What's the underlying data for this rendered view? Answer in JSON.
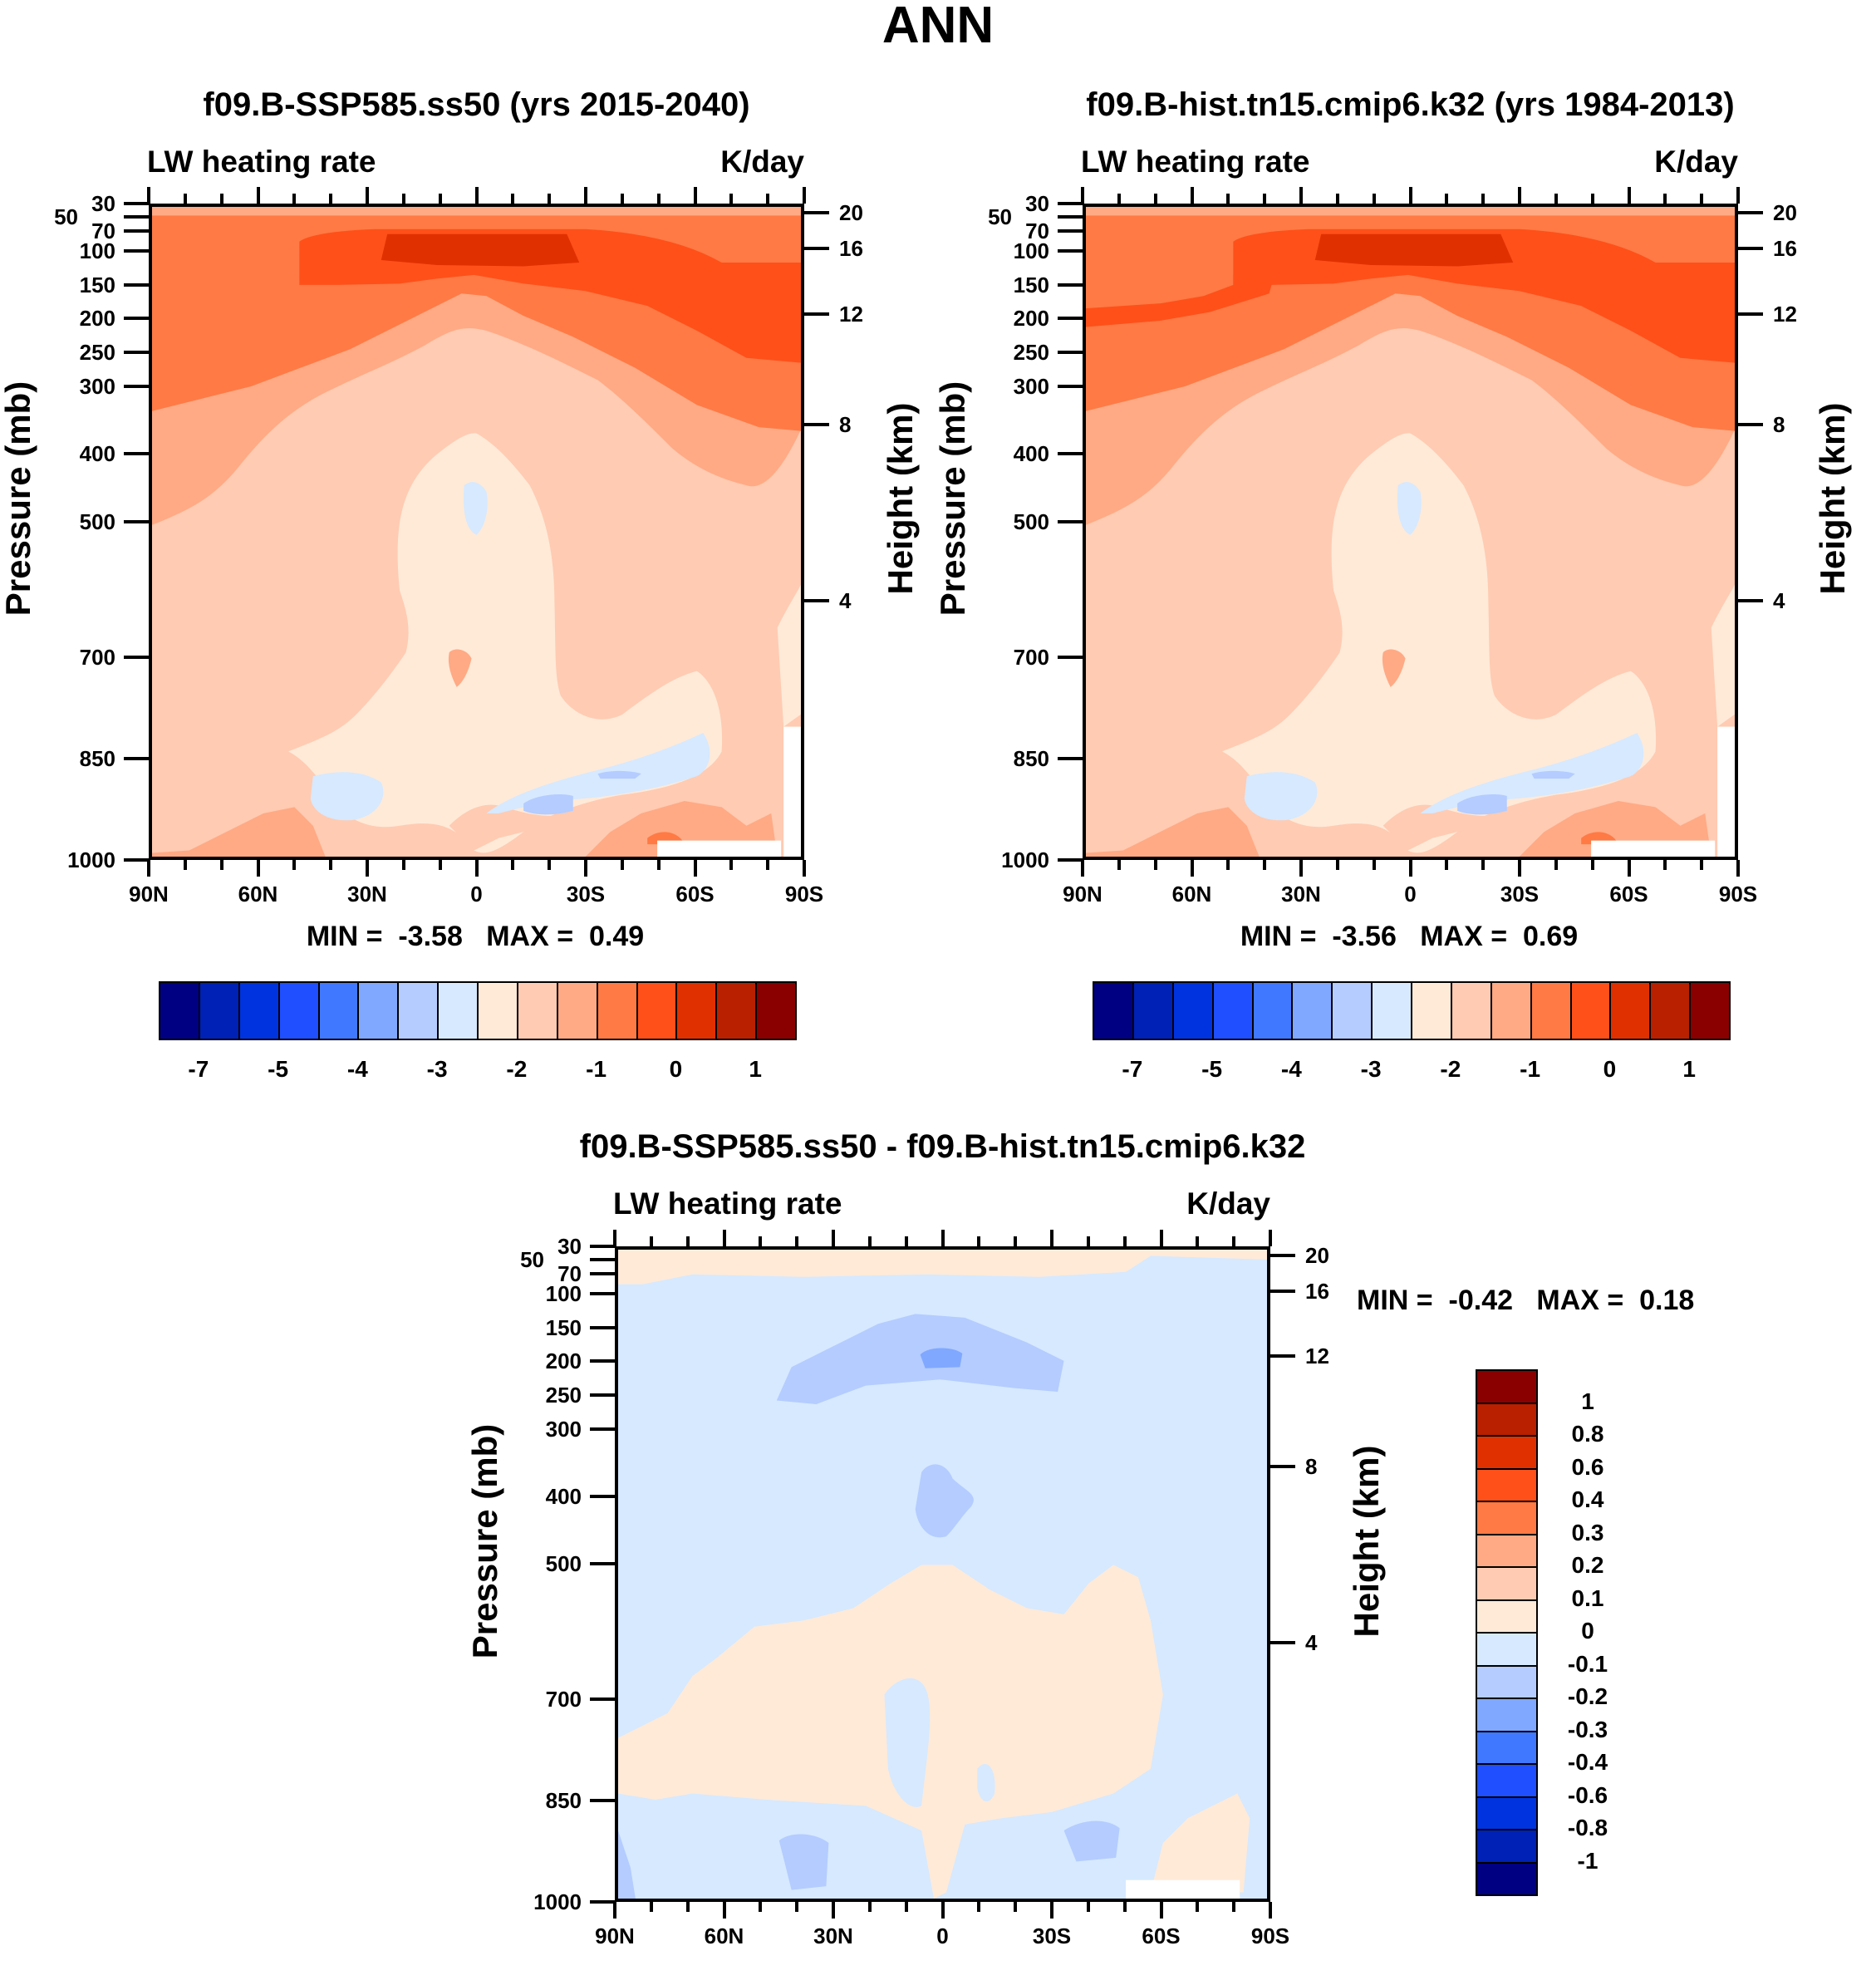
{
  "main_title": "ANN",
  "chart_data": [
    {
      "type": "heatmap",
      "title": "f09.B-SSP585.ss50 (yrs 2015-2040)",
      "left_subtitle": "LW heating rate",
      "right_subtitle": "K/day",
      "ylabel": "Pressure (mb)",
      "y2label": "Height (km)",
      "x_ticks": [
        "90N",
        "60N",
        "30N",
        "0",
        "30S",
        "60S",
        "90S"
      ],
      "y_ticks": [
        30,
        50,
        70,
        100,
        150,
        200,
        250,
        300,
        400,
        500,
        700,
        850,
        1000
      ],
      "y2_ticks": [
        20,
        16,
        12,
        8,
        4
      ],
      "ylim": [
        30,
        1000
      ],
      "min_label": "MIN =",
      "min_value": "-3.58",
      "max_label": "MAX =",
      "max_value": "0.49",
      "colorbar": {
        "orientation": "horizontal",
        "labels": [
          "-7",
          "-5",
          "-4",
          "-3",
          "-2",
          "-1",
          "0",
          "1"
        ],
        "label_every": 2
      }
    },
    {
      "type": "heatmap",
      "title": "f09.B-hist.tn15.cmip6.k32 (yrs 1984-2013)",
      "left_subtitle": "LW heating rate",
      "right_subtitle": "K/day",
      "ylabel": "Pressure (mb)",
      "y2label": "Height (km)",
      "x_ticks": [
        "90N",
        "60N",
        "30N",
        "0",
        "30S",
        "60S",
        "90S"
      ],
      "y_ticks": [
        30,
        50,
        70,
        100,
        150,
        200,
        250,
        300,
        400,
        500,
        700,
        850,
        1000
      ],
      "y2_ticks": [
        20,
        16,
        12,
        8,
        4
      ],
      "ylim": [
        30,
        1000
      ],
      "min_label": "MIN =",
      "min_value": "-3.56",
      "max_label": "MAX =",
      "max_value": "0.69",
      "colorbar": {
        "orientation": "horizontal",
        "labels": [
          "-7",
          "-5",
          "-4",
          "-3",
          "-2",
          "-1",
          "0",
          "1"
        ],
        "label_every": 2
      }
    },
    {
      "type": "heatmap",
      "title": "f09.B-SSP585.ss50 - f09.B-hist.tn15.cmip6.k32",
      "left_subtitle": "LW heating rate",
      "right_subtitle": "K/day",
      "ylabel": "Pressure (mb)",
      "y2label": "Height (km)",
      "x_ticks": [
        "90N",
        "60N",
        "30N",
        "0",
        "30S",
        "60S",
        "90S"
      ],
      "y_ticks": [
        30,
        50,
        70,
        100,
        150,
        200,
        250,
        300,
        400,
        500,
        700,
        850,
        1000
      ],
      "y2_ticks": [
        20,
        16,
        12,
        8,
        4
      ],
      "ylim": [
        30,
        1000
      ],
      "min_label": "MIN =",
      "min_value": "-0.42",
      "max_label": "MAX =",
      "max_value": "0.18",
      "colorbar": {
        "orientation": "vertical",
        "labels": [
          "1",
          "0.8",
          "0.6",
          "0.4",
          "0.3",
          "0.2",
          "0.1",
          "0",
          "-0.1",
          "-0.2",
          "-0.3",
          "-0.4",
          "-0.6",
          "-0.8",
          "-1"
        ],
        "label_every": 1
      }
    }
  ],
  "colors": [
    "#000083",
    "#0021B5",
    "#0033E0",
    "#1F4FFF",
    "#4078FF",
    "#80A8FF",
    "#B4CCFF",
    "#D6E9FF",
    "#FFEAD8",
    "#FFCBB2",
    "#FFAA85",
    "#FF7A45",
    "#FF5019",
    "#E13000",
    "#B82000",
    "#8A0000"
  ]
}
